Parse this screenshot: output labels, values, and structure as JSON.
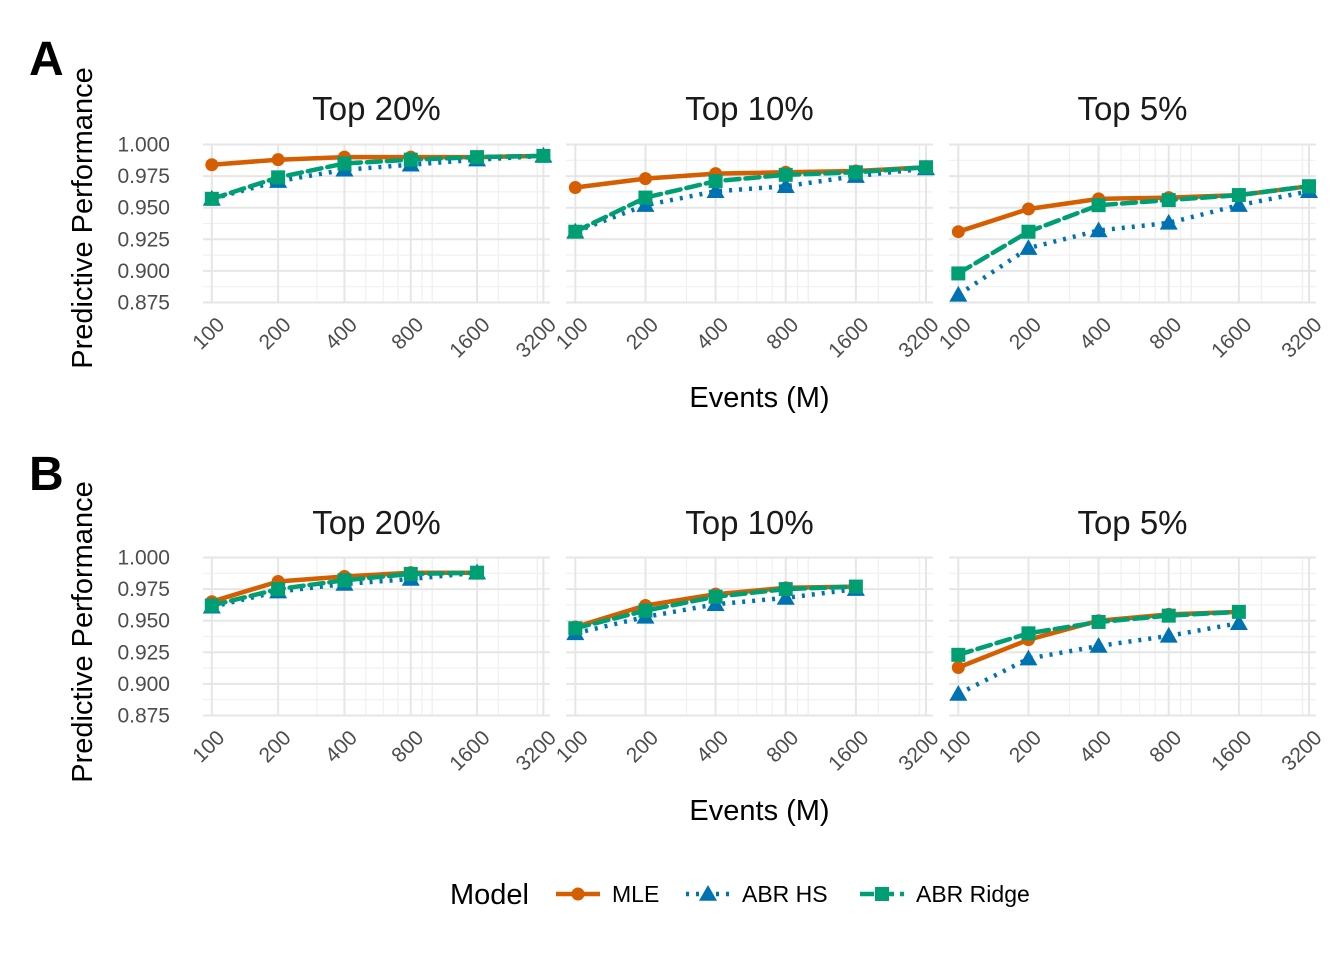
{
  "colors": {
    "MLE": "#D55E00",
    "ABR HS": "#0072B2",
    "ABR Ridge": "#009E73",
    "grid_major": "#E6E6E6",
    "grid_minor": "#F0F0F0",
    "tick_text": "#4D4D4D",
    "text": "#1A1A1A"
  },
  "legend": {
    "title": "Model",
    "items": [
      {
        "label": "MLE",
        "shape": "circle",
        "linestyle": "solid"
      },
      {
        "label": "ABR HS",
        "shape": "triangle",
        "linestyle": "dotted"
      },
      {
        "label": "ABR Ridge",
        "shape": "square",
        "linestyle": "dashed"
      }
    ]
  },
  "chart_data": [
    {
      "tag": "A",
      "type": "line",
      "ylabel": "Predictive Performance",
      "xlabel": "Events (M)",
      "x_scale": "log",
      "x_ticks": [
        100,
        200,
        400,
        800,
        1600,
        3200
      ],
      "ylim": [
        0.875,
        1.0
      ],
      "y_ticks": [
        "0.875",
        "0.900",
        "0.925",
        "0.950",
        "0.975",
        "1.000"
      ],
      "facets": [
        {
          "title": "Top 20%",
          "series": [
            {
              "name": "MLE",
              "x": [
                100,
                200,
                400,
                800,
                1600,
                3200
              ],
              "y": [
                0.984,
                0.988,
                0.99,
                0.99,
                0.99,
                0.991
              ]
            },
            {
              "name": "ABR HS",
              "x": [
                100,
                200,
                400,
                800,
                1600,
                3200
              ],
              "y": [
                0.957,
                0.971,
                0.98,
                0.984,
                0.988,
                0.991
              ]
            },
            {
              "name": "ABR Ridge",
              "x": [
                100,
                200,
                400,
                800,
                1600,
                3200
              ],
              "y": [
                0.957,
                0.974,
                0.985,
                0.988,
                0.99,
                0.991
              ]
            }
          ]
        },
        {
          "title": "Top 10%",
          "series": [
            {
              "name": "MLE",
              "x": [
                100,
                200,
                400,
                800,
                1600,
                3200
              ],
              "y": [
                0.966,
                0.973,
                0.977,
                0.978,
                0.979,
                0.982
              ]
            },
            {
              "name": "ABR HS",
              "x": [
                100,
                200,
                400,
                800,
                1600,
                3200
              ],
              "y": [
                0.931,
                0.952,
                0.963,
                0.967,
                0.975,
                0.981
              ]
            },
            {
              "name": "ABR Ridge",
              "x": [
                100,
                200,
                400,
                800,
                1600,
                3200
              ],
              "y": [
                0.931,
                0.958,
                0.971,
                0.976,
                0.978,
                0.982
              ]
            }
          ]
        },
        {
          "title": "Top 5%",
          "series": [
            {
              "name": "MLE",
              "x": [
                100,
                200,
                400,
                800,
                1600,
                3200
              ],
              "y": [
                0.931,
                0.949,
                0.957,
                0.958,
                0.96,
                0.967
              ]
            },
            {
              "name": "ABR HS",
              "x": [
                100,
                200,
                400,
                800,
                1600,
                3200
              ],
              "y": [
                0.881,
                0.918,
                0.932,
                0.938,
                0.952,
                0.963
              ]
            },
            {
              "name": "ABR Ridge",
              "x": [
                100,
                200,
                400,
                800,
                1600,
                3200
              ],
              "y": [
                0.898,
                0.931,
                0.952,
                0.956,
                0.96,
                0.967
              ]
            }
          ]
        }
      ]
    },
    {
      "tag": "B",
      "type": "line",
      "ylabel": "Predictive Performance",
      "xlabel": "Events (M)",
      "x_scale": "log",
      "x_ticks": [
        100,
        200,
        400,
        800,
        1600,
        3200
      ],
      "ylim": [
        0.875,
        1.0
      ],
      "y_ticks": [
        "0.875",
        "0.900",
        "0.925",
        "0.950",
        "0.975",
        "1.000"
      ],
      "facets": [
        {
          "title": "Top 20%",
          "series": [
            {
              "name": "MLE",
              "x": [
                100,
                200,
                400,
                800,
                1600
              ],
              "y": [
                0.965,
                0.981,
                0.985,
                0.988,
                0.988
              ]
            },
            {
              "name": "ABR HS",
              "x": [
                100,
                200,
                400,
                800,
                1600
              ],
              "y": [
                0.961,
                0.973,
                0.979,
                0.983,
                0.988
              ]
            },
            {
              "name": "ABR Ridge",
              "x": [
                100,
                200,
                400,
                800,
                1600
              ],
              "y": [
                0.962,
                0.975,
                0.982,
                0.987,
                0.988
              ]
            }
          ]
        },
        {
          "title": "Top 10%",
          "series": [
            {
              "name": "MLE",
              "x": [
                100,
                200,
                400,
                800,
                1600
              ],
              "y": [
                0.945,
                0.962,
                0.971,
                0.976,
                0.977
              ]
            },
            {
              "name": "ABR HS",
              "x": [
                100,
                200,
                400,
                800,
                1600
              ],
              "y": [
                0.94,
                0.953,
                0.963,
                0.968,
                0.975
              ]
            },
            {
              "name": "ABR Ridge",
              "x": [
                100,
                200,
                400,
                800,
                1600
              ],
              "y": [
                0.944,
                0.958,
                0.969,
                0.975,
                0.977
              ]
            }
          ]
        },
        {
          "title": "Top 5%",
          "series": [
            {
              "name": "MLE",
              "x": [
                100,
                200,
                400,
                800,
                1600
              ],
              "y": [
                0.913,
                0.935,
                0.95,
                0.955,
                0.957
              ]
            },
            {
              "name": "ABR HS",
              "x": [
                100,
                200,
                400,
                800,
                1600
              ],
              "y": [
                0.892,
                0.92,
                0.93,
                0.938,
                0.948
              ]
            },
            {
              "name": "ABR Ridge",
              "x": [
                100,
                200,
                400,
                800,
                1600
              ],
              "y": [
                0.923,
                0.94,
                0.949,
                0.954,
                0.957
              ]
            }
          ]
        }
      ]
    }
  ]
}
